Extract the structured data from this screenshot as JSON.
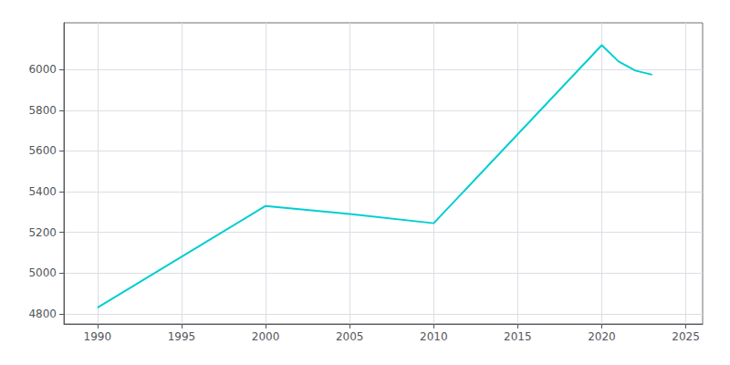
{
  "chart_data": {
    "type": "line",
    "x": [
      1990,
      2000,
      2005,
      2010,
      2020,
      2021,
      2022,
      2023
    ],
    "values": [
      4830,
      5330,
      5290,
      5245,
      6120,
      6040,
      5995,
      5975
    ],
    "color": "#00CED1",
    "xlim": [
      1988,
      2026
    ],
    "ylim": [
      4750,
      6230
    ],
    "xticks": [
      1990,
      1995,
      2000,
      2005,
      2010,
      2015,
      2020,
      2025
    ],
    "yticks": [
      4800,
      5000,
      5200,
      5400,
      5600,
      5800,
      6000
    ],
    "grid": true
  }
}
